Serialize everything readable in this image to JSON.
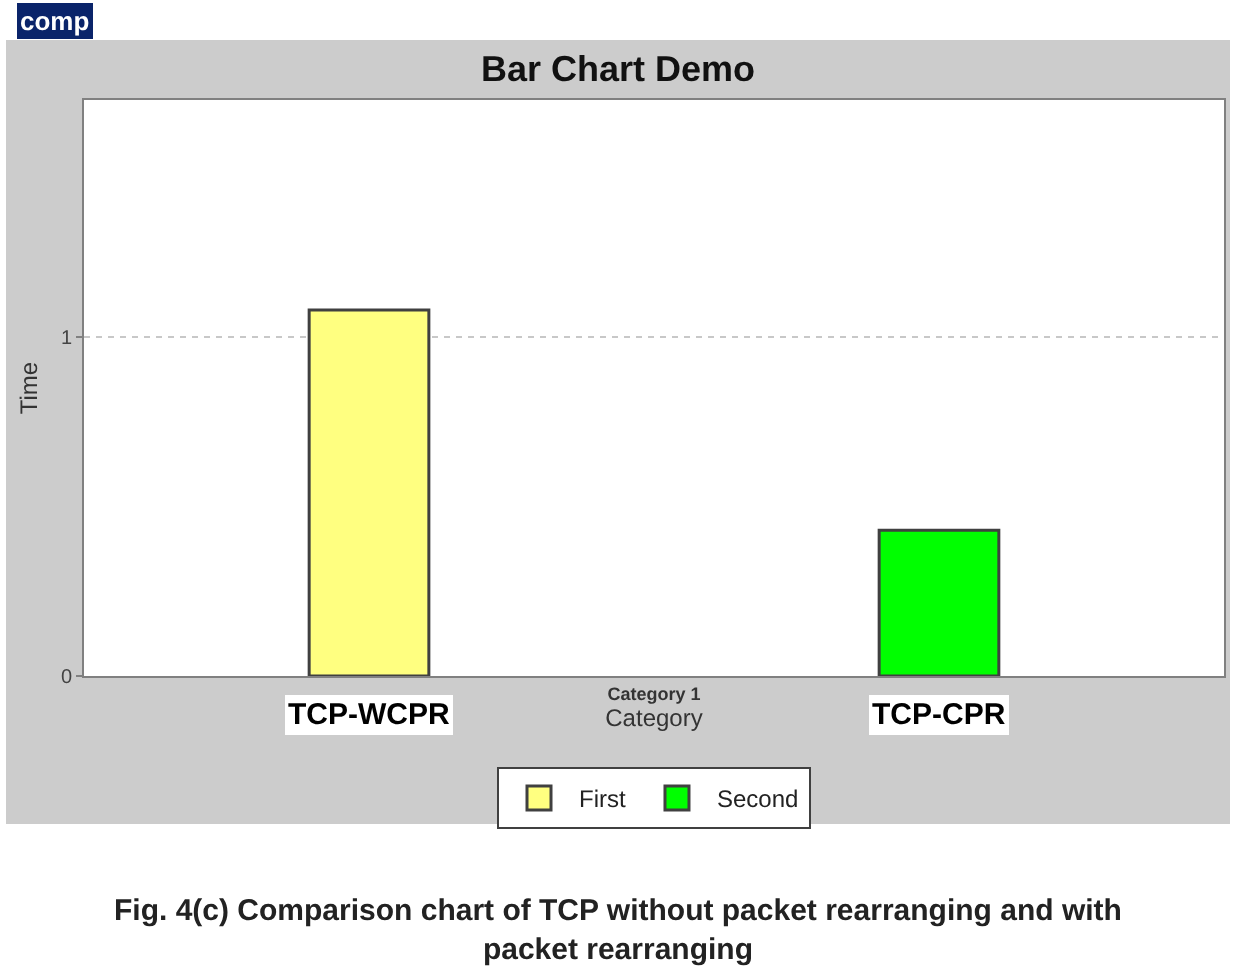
{
  "chart_data": {
    "type": "bar",
    "title": "Bar Chart Demo",
    "xlabel": "Category",
    "ylabel": "Time",
    "categories": [
      "Category 1"
    ],
    "series": [
      {
        "name": "First",
        "color": "#ffff80",
        "values": [
          1.08
        ]
      },
      {
        "name": "Second",
        "color": "#00ff00",
        "values": [
          0.43
        ]
      }
    ],
    "ylim": [
      0,
      1.7
    ],
    "yticks": [
      0,
      1
    ],
    "grid": "y",
    "legend": "bottom",
    "annotations": [
      "comp",
      "TCP-WCPR",
      "TCP-CPR",
      "Fig. 4(c) Comparison chart of TCP without packet rearranging and with\npacket rearranging"
    ]
  }
}
